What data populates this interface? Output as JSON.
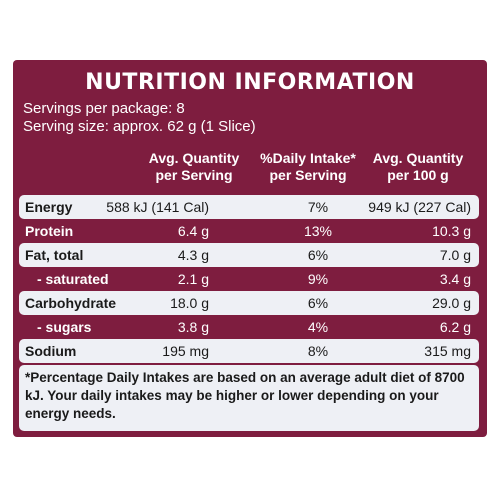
{
  "title": "NUTRITION INFORMATION",
  "servings_per_package": "Servings per package: 8",
  "serving_size": "Serving size: approx. 62 g (1 Slice)",
  "columns": {
    "per_serving": [
      "Avg. Quantity",
      "per Serving"
    ],
    "daily_intake": [
      "%Daily Intake*",
      "per Serving"
    ],
    "per_100g": [
      "Avg. Quantity",
      "per 100 g"
    ]
  },
  "rows": [
    {
      "name": "Energy",
      "per_serving": "588 kJ (141 Cal)",
      "daily_intake": "7%",
      "per_100g": "949 kJ (227 Cal)"
    },
    {
      "name": "Protein",
      "per_serving": "6.4 g",
      "daily_intake": "13%",
      "per_100g": "10.3 g"
    },
    {
      "name": "Fat, total",
      "per_serving": "4.3 g",
      "daily_intake": "6%",
      "per_100g": "7.0 g"
    },
    {
      "name": "- saturated",
      "per_serving": "2.1 g",
      "daily_intake": "9%",
      "per_100g": "3.4 g"
    },
    {
      "name": "Carbohydrate",
      "per_serving": "18.0 g",
      "daily_intake": "6%",
      "per_100g": "29.0 g"
    },
    {
      "name": "- sugars",
      "per_serving": "3.8 g",
      "daily_intake": "4%",
      "per_100g": "6.2 g"
    },
    {
      "name": "Sodium",
      "per_serving": "195 mg",
      "daily_intake": "8%",
      "per_100g": "315 mg"
    }
  ],
  "footnote": "*Percentage Daily Intakes are based on an average adult diet of 8700 kJ. Your daily intakes may be higher or lower depending on your energy needs.",
  "colors": {
    "panel": "#7e1d3f",
    "shaded_row": "#eef0f5"
  }
}
